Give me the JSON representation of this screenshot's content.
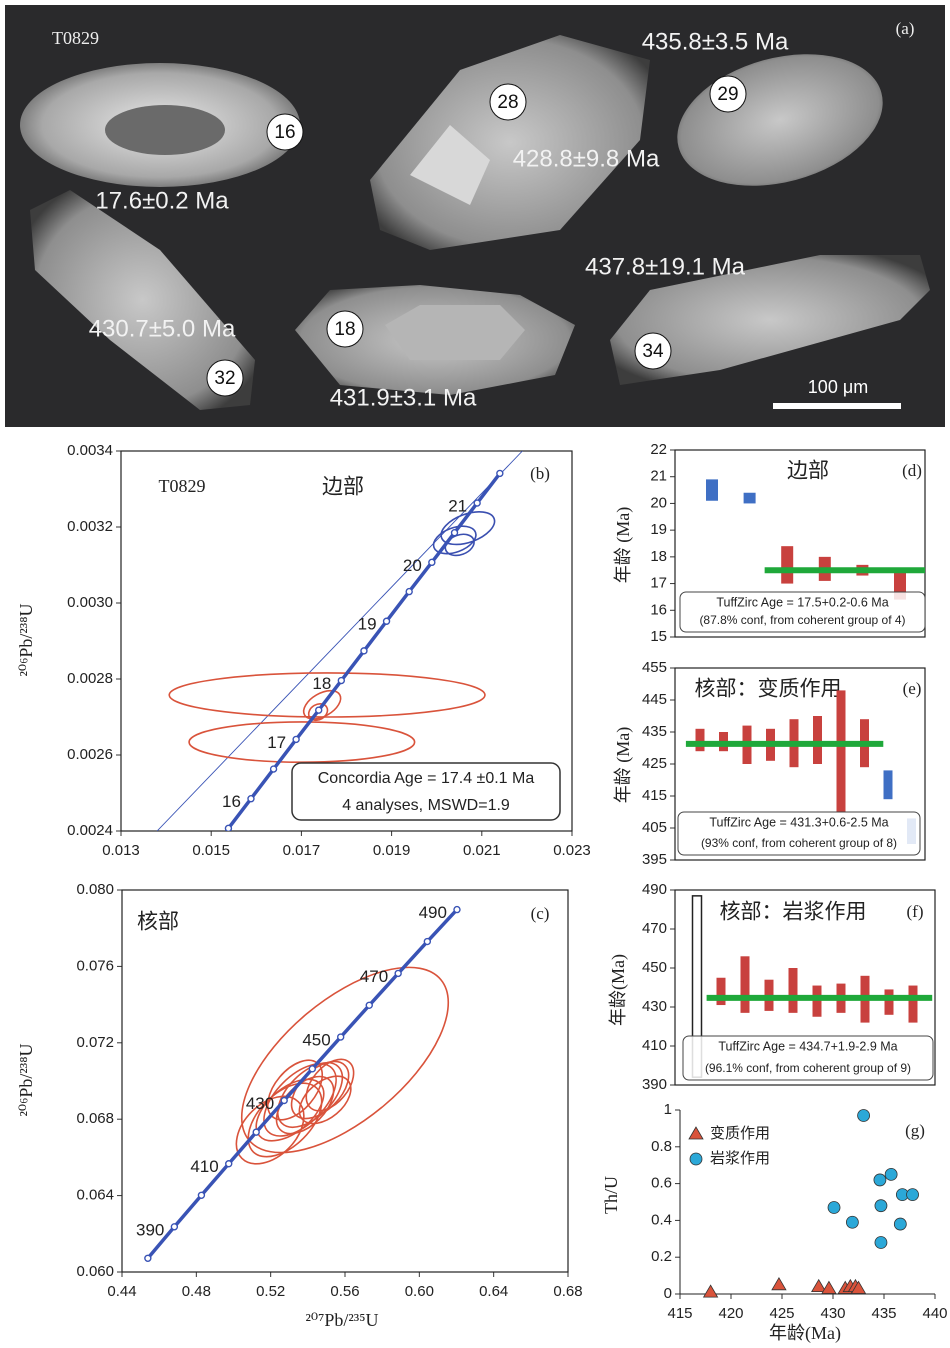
{
  "image_panel": {
    "panel": "(a)",
    "sample": "T0829",
    "scale_bar": "100 μm",
    "grains": [
      {
        "number": "16",
        "age": "17.6±0.2 Ma"
      },
      {
        "number": "28",
        "age": "428.8±9.8 Ma"
      },
      {
        "number": "29",
        "age": "435.8±3.5 Ma"
      },
      {
        "number": "32",
        "age": "430.7±5.0 Ma"
      },
      {
        "number": "18",
        "age": "431.9±3.1 Ma"
      },
      {
        "number": "34",
        "age": "437.8±19.1 Ma"
      }
    ]
  },
  "chart_data": [
    {
      "type": "concordia",
      "panel": "(b)",
      "sample": "T0829",
      "title": "边部",
      "y_label": "²⁰⁶Pb/²³⁸U",
      "xlim": [
        0.013,
        0.023
      ],
      "xticks": [
        0.013,
        0.015,
        0.017,
        0.019,
        0.021,
        0.023
      ],
      "ylim": [
        0.0024,
        0.0034
      ],
      "yticks": [
        0.0024,
        0.0026,
        0.0028,
        {
          "value": 0.003,
          "label": "0.0030"
        },
        0.0032,
        0.0034
      ],
      "reference_line": {
        "color": "#3953b5",
        "x": [
          0.0138,
          0.0219
        ],
        "y": [
          0.0024,
          0.0034
        ]
      },
      "concordia": {
        "color": "#3953b5",
        "ages": [
          null,
          16,
          null,
          17,
          null,
          18,
          null,
          19,
          null,
          20,
          null,
          21,
          null
        ],
        "x": [
          0.015382,
          0.015882,
          0.016383,
          0.016883,
          0.017384,
          0.017885,
          0.018387,
          0.018888,
          0.01939,
          0.019892,
          0.020395,
          0.020897,
          0.0214
        ],
        "y": [
          0.002407,
          0.002485,
          0.002563,
          0.002641,
          0.002718,
          0.002796,
          0.002874,
          0.002952,
          0.00303,
          0.003107,
          0.003185,
          0.003263,
          0.003341
        ]
      },
      "ellipse_groups": [
        {
          "color": "#d9533b",
          "ellipses": [
            {
              "x": 0.01757,
              "y": 0.002758,
              "rx": 0.0035,
              "ry": 5.8e-05,
              "angle": 0
            },
            {
              "x": 0.01701,
              "y": 0.002634,
              "rx": 0.0025,
              "ry": 5.3e-05,
              "angle": 0
            },
            {
              "x": 0.01746,
              "y": 0.002732,
              "rx": 0.00045,
              "ry": 3e-05,
              "angle": -30
            },
            {
              "x": 0.01737,
              "y": 0.002713,
              "rx": 0.00022,
              "ry": 2e-05,
              "angle": -30
            }
          ]
        },
        {
          "color": "#3a4fb0",
          "ellipses": [
            {
              "x": 0.02069,
              "y": 0.003197,
              "rx": 0.00062,
              "ry": 3.7e-05,
              "angle": -20
            },
            {
              "x": 0.0204,
              "y": 0.003166,
              "rx": 0.00049,
              "ry": 3.2e-05,
              "angle": -20
            },
            {
              "x": 0.02051,
              "y": 0.003153,
              "rx": 0.00033,
              "ry": 2.6e-05,
              "angle": -20
            }
          ]
        }
      ],
      "result_box": [
        "Concordia Age = 17.4 ±0.1 Ma",
        "4 analyses, MSWD=1.9"
      ]
    },
    {
      "type": "concordia",
      "panel": "(c)",
      "title": "核部",
      "x_label": "²⁰⁷Pb/²³⁵U",
      "y_label": "²⁰⁶Pb/²³⁸U",
      "xlim": [
        0.44,
        0.68
      ],
      "xticks": [
        0.44,
        0.48,
        0.52,
        0.56,
        {
          "value": 0.6,
          "label": "0.60"
        },
        0.64,
        0.68
      ],
      "ylim": [
        0.06,
        0.08
      ],
      "yticks": [
        {
          "value": 0.06,
          "label": "0.060"
        },
        0.064,
        0.068,
        0.072,
        0.076,
        {
          "value": 0.08,
          "label": "0.080"
        }
      ],
      "concordia": {
        "color": "#3953b5",
        "ages": [
          null,
          390,
          null,
          410,
          null,
          430,
          null,
          450,
          null,
          470,
          null,
          490
        ],
        "x": [
          0.45391,
          0.46818,
          0.48274,
          0.49743,
          0.51222,
          0.52728,
          0.5424,
          0.55768,
          0.57306,
          0.58861,
          0.6043,
          0.62026
        ],
        "y": [
          0.060719,
          0.062366,
          0.064016,
          0.065668,
          0.067322,
          0.068979,
          0.070638,
          0.072301,
          0.073965,
          0.075633,
          0.077303,
          0.078975
        ]
      },
      "ellipse_groups": [
        {
          "color": "#d9533b",
          "ellipses": [
            {
              "x": 0.56,
              "y": 0.0711,
              "rx": 0.0673,
              "ry": 0.00314,
              "angle": -40
            },
            {
              "x": 0.5412,
              "y": 0.06927,
              "rx": 0.0215,
              "ry": 0.00115,
              "angle": -45
            },
            {
              "x": 0.5466,
              "y": 0.06953,
              "rx": 0.0188,
              "ry": 0.00105,
              "angle": -45
            },
            {
              "x": 0.5358,
              "y": 0.06901,
              "rx": 0.0242,
              "ry": 0.00126,
              "angle": -45
            },
            {
              "x": 0.5304,
              "y": 0.06848,
              "rx": 0.0215,
              "ry": 0.00115,
              "angle": -40
            },
            {
              "x": 0.5519,
              "y": 0.06979,
              "rx": 0.0161,
              "ry": 0.00094,
              "angle": -50
            },
            {
              "x": 0.5277,
              "y": 0.06796,
              "rx": 0.0242,
              "ry": 0.00136,
              "angle": -45
            },
            {
              "x": 0.5385,
              "y": 0.06874,
              "rx": 0.0188,
              "ry": 0.00105,
              "angle": -45
            },
            {
              "x": 0.5493,
              "y": 0.06901,
              "rx": 0.0161,
              "ry": 0.00094,
              "angle": -40
            },
            {
              "x": 0.5331,
              "y": 0.06953,
              "rx": 0.0188,
              "ry": 0.00105,
              "angle": -50
            },
            {
              "x": 0.5197,
              "y": 0.06743,
              "rx": 0.0215,
              "ry": 0.00136,
              "angle": -45
            }
          ]
        }
      ]
    },
    {
      "type": "age_bars",
      "panel": "(d)",
      "title": "边部",
      "y_label": "年龄 (Ma)",
      "ylim": [
        15,
        22
      ],
      "yticks": [
        15,
        16,
        17,
        18,
        19,
        20,
        21,
        22
      ],
      "low": [
        20.1,
        20.0,
        17.0,
        17.1,
        17.3,
        16.4
      ],
      "high": [
        20.9,
        20.4,
        18.4,
        18.0,
        17.7,
        17.5
      ],
      "colors": [
        "#3f6fc4",
        "#3f6fc4",
        "#c8413e",
        "#c8413e",
        "#c8413e",
        "#c8413e"
      ],
      "coherent": [
        false,
        false,
        true,
        true,
        true,
        true
      ],
      "age_line": 17.5,
      "line_color": "#1fa83a",
      "result_box": [
        "TuffZirc Age = 17.5+0.2-0.6 Ma",
        "(87.8% conf, from coherent group of 4)"
      ]
    },
    {
      "type": "age_bars",
      "panel": "(e)",
      "title": "核部：变质作用",
      "y_label": "年龄 (Ma)",
      "ylim": [
        395,
        455
      ],
      "yticks": [
        395,
        405,
        415,
        425,
        435,
        445,
        455
      ],
      "low": [
        429,
        429,
        425,
        426,
        424,
        425,
        410,
        424,
        414,
        400
      ],
      "high": [
        436,
        435,
        437,
        436,
        439,
        440,
        448,
        439,
        423,
        408
      ],
      "colors": [
        "#c8413e",
        "#c8413e",
        "#c8413e",
        "#c8413e",
        "#c8413e",
        "#c8413e",
        "#c8413e",
        "#c8413e",
        "#3f6fc4",
        "#3f6fc4"
      ],
      "coherent": [
        true,
        true,
        true,
        true,
        true,
        true,
        true,
        true,
        false,
        false
      ],
      "age_line": 431.3,
      "line_color": "#1fa83a",
      "result_box": [
        "TuffZirc Age = 431.3+0.6-2.5 Ma",
        "(93% conf, from coherent group of 8)"
      ]
    },
    {
      "type": "age_bars",
      "panel": "(f)",
      "title": "核部：岩浆作用",
      "y_label": "年龄(Ma)",
      "ylim": [
        390,
        490
      ],
      "yticks": [
        390,
        410,
        430,
        450,
        470,
        490
      ],
      "low": [
        394,
        431,
        427,
        428,
        427,
        425,
        427,
        422,
        426,
        422
      ],
      "high": [
        487,
        445,
        456,
        444,
        450,
        441,
        442,
        446,
        439,
        441
      ],
      "colors": [
        "#ffffff",
        "#c8413e",
        "#c8413e",
        "#c8413e",
        "#c8413e",
        "#c8413e",
        "#c8413e",
        "#c8413e",
        "#c8413e",
        "#c8413e"
      ],
      "coherent": [
        false,
        true,
        true,
        true,
        true,
        true,
        true,
        true,
        true,
        true
      ],
      "age_line": 434.7,
      "line_color": "#1fa83a",
      "result_box": [
        "TuffZirc Age = 434.7+1.9-2.9 Ma",
        "(96.1% conf, from coherent group of 9)"
      ]
    },
    {
      "type": "scatter",
      "panel": "(g)",
      "x_label": "年龄(Ma)",
      "y_label": "Th/U",
      "xlim": [
        415,
        440
      ],
      "xticks": [
        415,
        420,
        425,
        430,
        435,
        440
      ],
      "ylim": [
        0,
        1
      ],
      "yticks": [
        0,
        0.2,
        0.4,
        0.6,
        0.8,
        1
      ],
      "legend": "upper left",
      "series": [
        {
          "name": "变质作用",
          "marker": "triangle",
          "color": "#d9533b",
          "x": [
            418.0,
            424.7,
            428.6,
            429.6,
            431.2,
            431.7,
            432.2,
            432.5
          ],
          "values": [
            0.01,
            0.05,
            0.04,
            0.03,
            0.03,
            0.04,
            0.04,
            0.03
          ]
        },
        {
          "name": "岩浆作用",
          "marker": "circle",
          "color": "#2ba8d8",
          "x": [
            433.0,
            430.1,
            431.9,
            434.6,
            435.7,
            434.7,
            436.8,
            437.8,
            436.6,
            434.7
          ],
          "values": [
            0.97,
            0.47,
            0.39,
            0.62,
            0.65,
            0.48,
            0.54,
            0.54,
            0.38,
            0.28
          ]
        }
      ]
    }
  ]
}
